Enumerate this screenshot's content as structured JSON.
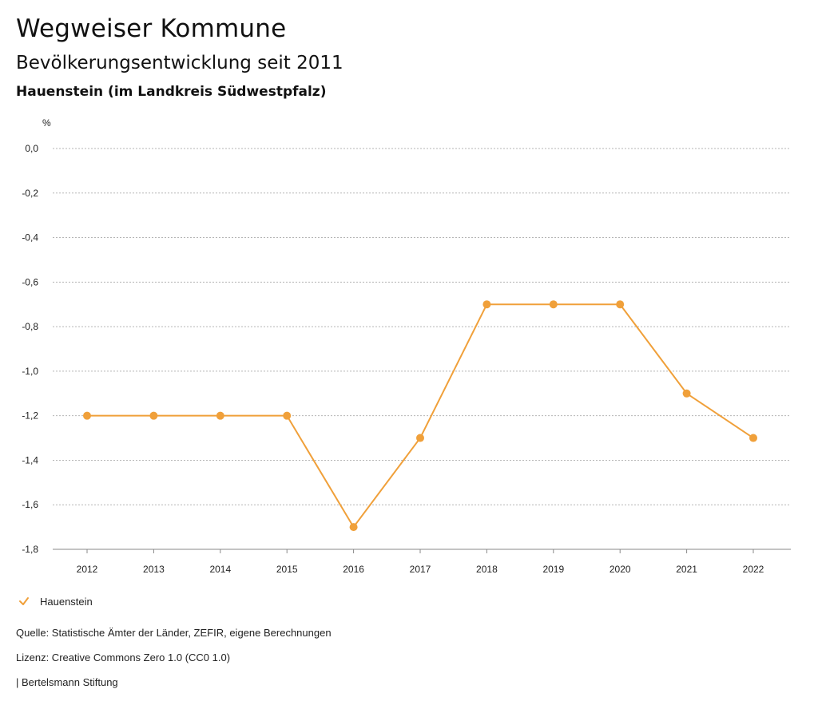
{
  "header": {
    "title": "Wegweiser Kommune",
    "subtitle": "Bevölkerungsentwicklung seit 2011",
    "region": "Hauenstein (im Landkreis Südwestpfalz)"
  },
  "chart_data": {
    "type": "line",
    "title": "Bevölkerungsentwicklung seit 2011",
    "xlabel": "",
    "ylabel": "%",
    "categories": [
      "2012",
      "2013",
      "2014",
      "2015",
      "2016",
      "2017",
      "2018",
      "2019",
      "2020",
      "2021",
      "2022"
    ],
    "series": [
      {
        "name": "Hauenstein",
        "values": [
          -1.2,
          -1.2,
          -1.2,
          -1.2,
          -1.7,
          -1.3,
          -0.7,
          -0.7,
          -0.7,
          -1.1,
          -1.3
        ],
        "color": "#f0a03a"
      }
    ],
    "ylim": [
      -1.8,
      0.0
    ],
    "yticks": [
      "0,0",
      "-0,2",
      "-0,4",
      "-0,6",
      "-0,8",
      "-1,0",
      "-1,2",
      "-1,4",
      "-1,6",
      "-1,8"
    ],
    "grid": true,
    "legend": "bottom-left"
  },
  "legend": {
    "label": "Hauenstein",
    "icon": "check-icon"
  },
  "footer": {
    "source": "Quelle: Statistische Ämter der Länder, ZEFIR, eigene Berechnungen",
    "license": "Lizenz: Creative Commons Zero 1.0 (CC0 1.0)",
    "publisher": "| Bertelsmann Stiftung"
  }
}
